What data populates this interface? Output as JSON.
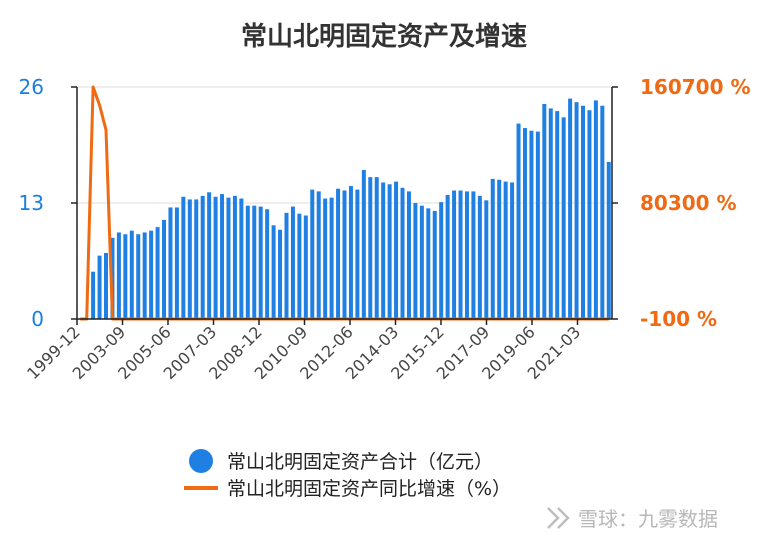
{
  "chart_data": {
    "type": "bar",
    "title": "常山北明固定资产及增速",
    "left_axis": {
      "ticks": [
        "0",
        "13",
        "26"
      ],
      "ylim": [
        0,
        26
      ]
    },
    "right_axis": {
      "ticks": [
        "-100 %",
        "80300 %",
        "160700 %"
      ],
      "ylim": [
        -100,
        160700
      ]
    },
    "x_tick_labels": [
      "1999-12",
      "2003-09",
      "2005-06",
      "2007-03",
      "2008-12",
      "2010-09",
      "2012-06",
      "2014-03",
      "2015-12",
      "2017-09",
      "2019-06",
      "2021-03"
    ],
    "legend": [
      {
        "name": "常山北明固定资产合计（亿元）",
        "color": "#1f7fe3",
        "marker": "circle"
      },
      {
        "name": "常山北明固定资产同比增速（%）",
        "color": "#ef6a12",
        "marker": "line"
      }
    ],
    "series": [
      {
        "name": "常山北明固定资产合计（亿元）",
        "type": "bar",
        "axis": "left",
        "color": "#1f7fe3",
        "values": [
          0,
          0,
          5.3,
          7.1,
          7.4,
          9.1,
          9.7,
          9.5,
          9.9,
          9.5,
          9.7,
          9.9,
          10.3,
          11.1,
          12.5,
          12.5,
          13.7,
          13.4,
          13.4,
          13.8,
          14.2,
          13.7,
          14.0,
          13.6,
          13.8,
          13.5,
          12.7,
          12.7,
          12.6,
          12.3,
          10.5,
          10.0,
          11.9,
          12.6,
          11.8,
          11.6,
          14.5,
          14.3,
          13.5,
          13.6,
          14.6,
          14.4,
          14.9,
          14.5,
          16.7,
          15.9,
          15.9,
          15.3,
          15.1,
          15.4,
          14.7,
          14.3,
          13.0,
          12.7,
          12.4,
          12.1,
          13.1,
          13.9,
          14.4,
          14.4,
          14.3,
          14.3,
          13.8,
          13.3,
          15.7,
          15.6,
          15.4,
          15.3,
          21.9,
          21.4,
          21.1,
          21.0,
          24.1,
          23.6,
          23.3,
          22.6,
          24.7,
          24.3,
          23.9,
          23.4,
          24.5,
          23.9,
          17.6
        ]
      },
      {
        "name": "常山北明固定资产同比增速（%）",
        "type": "line",
        "axis": "right",
        "color": "#ef6a12",
        "values": [
          -100,
          -100,
          160700,
          148000,
          131000,
          -100,
          -100,
          -100,
          -100,
          -100,
          -100,
          -100,
          -100,
          -100,
          -100,
          -100,
          -100,
          -100,
          -100,
          -100,
          -100,
          -100,
          -100,
          -100,
          -100,
          -100,
          -100,
          -100,
          -100,
          -100,
          -100,
          -100,
          -100,
          -100,
          -100,
          -100,
          -100,
          -100,
          -100,
          -100,
          -100,
          -100,
          -100,
          -100,
          -100,
          -100,
          -100,
          -100,
          -100,
          -100,
          -100,
          -100,
          -100,
          -100,
          -100,
          -100,
          -100,
          -100,
          -100,
          -100,
          -100,
          -100,
          -100,
          -100,
          -100,
          -100,
          -100,
          -100,
          -100,
          -100,
          -100,
          -100,
          -100,
          -100,
          -100,
          -100,
          -100,
          -100,
          -100,
          -100,
          -100,
          -100,
          -100
        ]
      }
    ]
  },
  "watermark": "雪球：九雾数据"
}
